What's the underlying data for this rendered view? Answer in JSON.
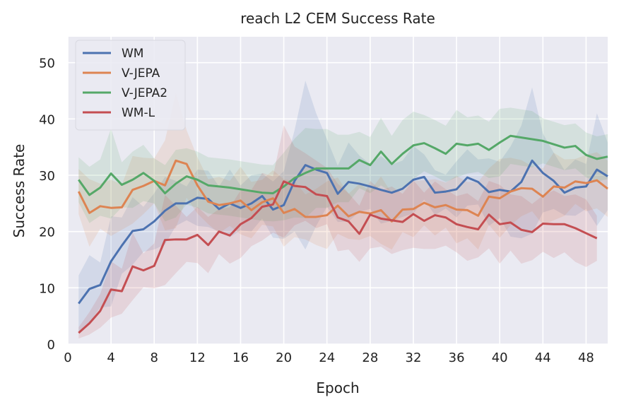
{
  "chart_data": {
    "type": "line",
    "title": "reach L2 CEM Success Rate",
    "xlabel": "Epoch",
    "ylabel": "Success Rate",
    "xlim": [
      0,
      50
    ],
    "ylim": [
      0,
      54.6
    ],
    "xticks": [
      0,
      4,
      8,
      12,
      16,
      20,
      24,
      28,
      32,
      36,
      40,
      44,
      48
    ],
    "yticks": [
      0,
      10,
      20,
      30,
      40,
      50
    ],
    "grid": true,
    "legend_placement": "top-left",
    "background": "#eaeaf2",
    "series": [
      {
        "name": "WM",
        "color": "#4c72b0",
        "x": [
          1,
          2,
          3,
          4,
          5,
          6,
          7,
          8,
          9,
          10,
          11,
          12,
          13,
          14,
          15,
          16,
          17,
          18,
          19,
          20,
          21,
          22,
          23,
          24,
          25,
          26,
          27,
          28,
          29,
          30,
          31,
          32,
          33,
          34,
          35,
          36,
          37,
          38,
          39,
          40,
          41,
          42,
          43,
          44,
          45,
          46,
          47,
          48,
          49,
          50
        ],
        "values": [
          7.2,
          9.8,
          10.5,
          14.7,
          17.5,
          20.1,
          20.4,
          21.8,
          23.7,
          25.0,
          25.0,
          26.0,
          25.8,
          24.0,
          25.0,
          24.2,
          25.0,
          26.3,
          23.9,
          24.7,
          29.0,
          31.8,
          31.0,
          30.4,
          26.7,
          28.8,
          28.5,
          28.0,
          27.4,
          26.9,
          27.6,
          29.2,
          29.7,
          26.9,
          27.1,
          27.5,
          29.6,
          28.8,
          27.0,
          27.4,
          27.1,
          28.8,
          32.6,
          30.4,
          29.0,
          26.9,
          27.8,
          28.0,
          31.0,
          29.8
        ],
        "spread": [
          5,
          6,
          4,
          8,
          5,
          6,
          4,
          5,
          6,
          4,
          3,
          5,
          5,
          4,
          6,
          4,
          5,
          4,
          5,
          6,
          9,
          15,
          10,
          6,
          5,
          7,
          5,
          4,
          6,
          5,
          5,
          6,
          4,
          4,
          3,
          5,
          5,
          4,
          6,
          5,
          8,
          10,
          13,
          7,
          5,
          4,
          5,
          4,
          10,
          6
        ]
      },
      {
        "name": "V-JEPA",
        "color": "#dd8452",
        "x": [
          1,
          2,
          3,
          4,
          5,
          6,
          7,
          8,
          9,
          10,
          11,
          12,
          13,
          14,
          15,
          16,
          17,
          18,
          19,
          20,
          21,
          22,
          23,
          24,
          25,
          26,
          27,
          28,
          29,
          30,
          31,
          32,
          33,
          34,
          35,
          36,
          37,
          38,
          39,
          40,
          41,
          42,
          43,
          44,
          45,
          46,
          47,
          48,
          49,
          50
        ],
        "values": [
          27.1,
          23.3,
          24.5,
          24.2,
          24.3,
          27.4,
          28.1,
          29.0,
          28.2,
          32.6,
          32.0,
          28.2,
          25.3,
          24.7,
          25.0,
          25.5,
          23.8,
          25.2,
          25.9,
          23.3,
          24.0,
          22.6,
          22.6,
          22.9,
          24.6,
          22.7,
          23.5,
          23.2,
          23.8,
          21.8,
          23.9,
          24.0,
          25.1,
          24.3,
          24.7,
          23.9,
          23.8,
          22.8,
          26.2,
          25.9,
          27.1,
          27.7,
          27.6,
          26.2,
          28.0,
          27.8,
          28.9,
          28.6,
          29.1,
          27.6
        ],
        "spread": [
          4,
          6,
          4,
          5,
          4,
          6,
          5,
          4,
          8,
          12,
          6,
          5,
          4,
          5,
          4,
          6,
          5,
          4,
          5,
          6,
          5,
          4,
          5,
          6,
          5,
          4,
          5,
          4,
          6,
          5,
          4,
          5,
          4,
          5,
          4,
          6,
          5,
          6,
          5,
          7,
          6,
          5,
          4,
          5,
          6,
          5,
          4,
          5,
          5,
          5
        ]
      },
      {
        "name": "V-JEPA2",
        "color": "#55a868",
        "x": [
          1,
          2,
          3,
          4,
          5,
          6,
          7,
          8,
          9,
          10,
          11,
          12,
          13,
          14,
          15,
          16,
          17,
          18,
          19,
          20,
          21,
          22,
          23,
          24,
          25,
          26,
          27,
          28,
          29,
          30,
          31,
          32,
          33,
          34,
          35,
          36,
          37,
          38,
          39,
          40,
          41,
          42,
          43,
          44,
          45,
          46,
          47,
          48,
          49,
          50
        ],
        "values": [
          29.2,
          26.5,
          27.8,
          30.3,
          28.3,
          29.2,
          30.4,
          29.0,
          26.8,
          28.5,
          29.8,
          29.2,
          28.2,
          28.0,
          27.8,
          27.5,
          27.2,
          26.9,
          26.8,
          28.0,
          29.5,
          30.4,
          31.2,
          31.2,
          31.2,
          31.2,
          32.7,
          31.8,
          34.2,
          32.0,
          33.8,
          35.3,
          35.7,
          34.8,
          33.8,
          35.6,
          35.3,
          35.6,
          34.5,
          35.8,
          37.0,
          36.7,
          36.4,
          36.1,
          35.5,
          34.9,
          35.2,
          33.6,
          32.9,
          33.3
        ],
        "spread": [
          4,
          5,
          5,
          8,
          4,
          5,
          5,
          4,
          5,
          6,
          5,
          5,
          5,
          5,
          5,
          5,
          5,
          5,
          5,
          6,
          7,
          8,
          7,
          7,
          6,
          6,
          5,
          5,
          6,
          5,
          6,
          6,
          5,
          5,
          5,
          6,
          5,
          5,
          5,
          6,
          5,
          5,
          5,
          4,
          4,
          4,
          4,
          4,
          4,
          4
        ]
      },
      {
        "name": "WM-L",
        "color": "#c44e52",
        "x": [
          1,
          2,
          3,
          4,
          5,
          6,
          7,
          8,
          9,
          10,
          11,
          12,
          13,
          14,
          15,
          16,
          17,
          18,
          19,
          20,
          21,
          22,
          23,
          24,
          25,
          26,
          27,
          28,
          29,
          30,
          31,
          32,
          33,
          34,
          35,
          36,
          37,
          38,
          39,
          40,
          41,
          42,
          43,
          44,
          45,
          46,
          47,
          48,
          49
        ],
        "values": [
          2.0,
          3.7,
          5.9,
          9.7,
          9.4,
          13.8,
          13.1,
          13.9,
          18.5,
          18.6,
          18.6,
          19.4,
          17.6,
          20.0,
          19.3,
          21.3,
          22.4,
          24.4,
          24.8,
          28.9,
          28.1,
          27.9,
          26.6,
          26.3,
          22.5,
          21.8,
          19.6,
          23.0,
          22.3,
          22.0,
          21.7,
          23.1,
          21.9,
          22.9,
          22.5,
          21.3,
          20.8,
          20.4,
          23.0,
          21.3,
          21.6,
          20.3,
          19.9,
          21.4,
          21.3,
          21.3,
          20.6,
          19.7,
          18.8
        ],
        "spread": [
          1,
          2,
          3,
          5,
          4,
          6,
          3,
          4,
          8,
          6,
          4,
          5,
          5,
          4,
          5,
          6,
          5,
          6,
          5,
          10,
          7,
          6,
          6,
          5,
          6,
          5,
          5,
          6,
          5,
          6,
          5,
          6,
          5,
          6,
          5,
          5,
          6,
          5,
          6,
          7,
          5,
          6,
          5,
          5,
          6,
          5,
          6,
          6,
          4
        ]
      }
    ]
  }
}
